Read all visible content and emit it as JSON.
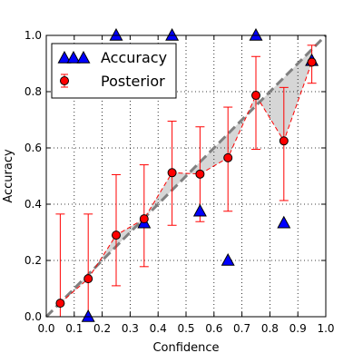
{
  "chart_data": {
    "type": "scatter",
    "xlabel": "Confidence",
    "ylabel": "Accuracy",
    "xlim": [
      0.0,
      1.0
    ],
    "ylim": [
      0.0,
      1.0
    ],
    "xticks": [
      "0.0",
      "0.1",
      "0.2",
      "0.3",
      "0.4",
      "0.5",
      "0.6",
      "0.7",
      "0.8",
      "0.9",
      "1.0"
    ],
    "yticks": [
      "0.0",
      "0.2",
      "0.4",
      "0.6",
      "0.8",
      "1.0"
    ],
    "grid": true,
    "legend_position": "top-left",
    "diagonal": {
      "from": [
        0,
        0
      ],
      "to": [
        1,
        1
      ],
      "style": "dashed",
      "color": "#808080"
    },
    "series": [
      {
        "name": "Accuracy",
        "marker": "triangle",
        "color": "#0000ff",
        "x": [
          0.05,
          0.15,
          0.25,
          0.35,
          0.45,
          0.55,
          0.65,
          0.75,
          0.85,
          0.95
        ],
        "y": [
          null,
          0.0,
          1.0,
          0.333,
          1.0,
          0.375,
          0.2,
          1.0,
          0.333,
          0.91
        ]
      },
      {
        "name": "Posterior",
        "marker": "circle",
        "color": "#ff0000",
        "x": [
          0.05,
          0.15,
          0.25,
          0.35,
          0.45,
          0.55,
          0.65,
          0.75,
          0.85,
          0.95
        ],
        "y": [
          0.048,
          0.135,
          0.29,
          0.348,
          0.512,
          0.507,
          0.565,
          0.787,
          0.625,
          0.905
        ],
        "err_low": [
          0.0,
          0.0,
          0.11,
          0.178,
          0.325,
          0.338,
          0.375,
          0.595,
          0.413,
          0.83
        ],
        "err_high": [
          0.365,
          0.365,
          0.505,
          0.54,
          0.695,
          0.675,
          0.745,
          0.925,
          0.815,
          0.965
        ]
      }
    ]
  }
}
